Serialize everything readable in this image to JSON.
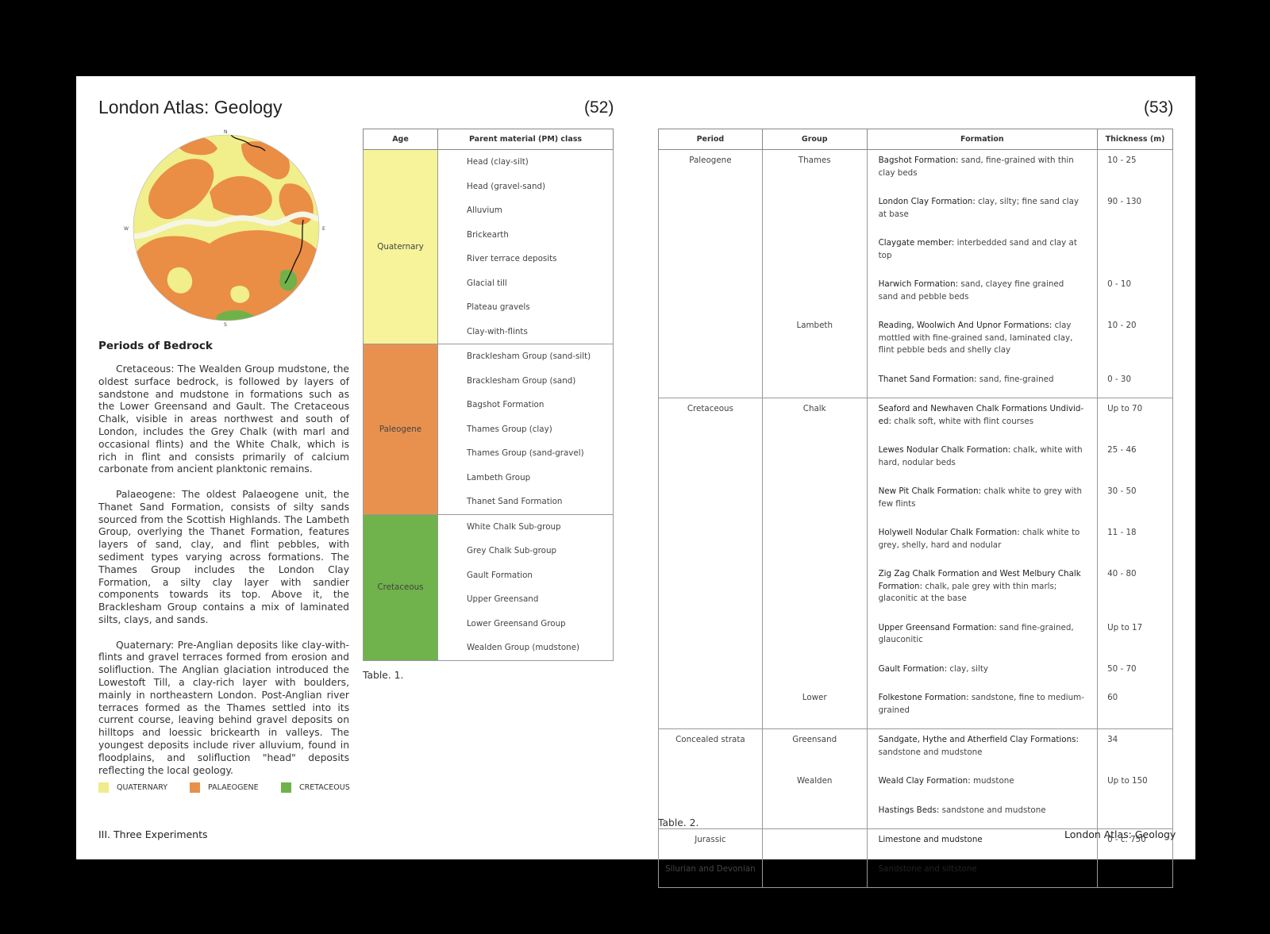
{
  "left_page": {
    "title": "London Atlas: Geology",
    "page_number": "(52)",
    "map": {
      "compass": {
        "n": "N",
        "s": "S",
        "w": "W",
        "e": "E"
      }
    },
    "section_heading": "Periods of Bedrock",
    "paragraphs": [
      {
        "lead": "Cretaceous:",
        "text": " The Wealden Group mudstone, the oldest surface bedrock, is followed by layers of sandstone and mudstone in formations such as the Lower Greensand and Gault. The Cretaceous Chalk, visible in areas northwest and south of London, includes the Grey Chalk (with marl and occasional flints) and the White Chalk, which is rich in flint and consists primarily of calcium carbonate from ancient planktonic remains."
      },
      {
        "lead": "Palaeogene:",
        "text": " The oldest Palaeogene unit, the Thanet Sand Formation, consists of silty sands sourced from the Scottish Highlands. The Lambeth Group, overlying the Thanet Formation, features layers of sand, clay, and flint pebbles, with sediment types varying across formations. The Thames Group includes the London Clay Formation, a silty clay layer with sandier components towards its top. Above it, the Bracklesham Group contains a mix of laminated silts, clays, and sands."
      },
      {
        "lead": "Quaternary:",
        "text": " Pre-Anglian deposits like clay-with-flints and gravel terraces formed from erosion and solifluction. The Anglian glaciation introduced the Lowestoft Till, a clay-rich layer with boulders, mainly in northeastern London. Post-Anglian river terraces formed as the Thames settled into its current course, leaving behind gravel deposits on hilltops and loessic brickearth in valleys. The youngest deposits include river alluvium, found in floodplains, and solifluction \"head\" deposits reflecting the local geology."
      }
    ],
    "legend": [
      {
        "label": "QUATERNARY",
        "color": "#f0ec8a"
      },
      {
        "label": "PALAEOGENE",
        "color": "#e8904a"
      },
      {
        "label": "CRETACEOUS",
        "color": "#6fb24a"
      }
    ],
    "footer": "III. Three Experiments"
  },
  "table1": {
    "headers": [
      "Age",
      "Parent material (PM) class"
    ],
    "groups": [
      {
        "age": "Quaternary",
        "color": "#f6f39a",
        "items": [
          "Head (clay-silt)",
          "Head (gravel-sand)",
          "Alluvium",
          "Brickearth",
          "River terrace deposits",
          "Glacial till",
          "Plateau gravels",
          "Clay-with-flints"
        ]
      },
      {
        "age": "Paleogene",
        "color": "#e8914f",
        "items": [
          "Bracklesham Group (sand-silt)",
          "Bracklesham Group (sand)",
          "Bagshot Formation",
          "Thames Group (clay)",
          "Thames Group (sand-gravel)",
          "Lambeth Group",
          "Thanet Sand Formation"
        ]
      },
      {
        "age": "Cretaceous",
        "color": "#70b24b",
        "items": [
          "White Chalk Sub-group",
          "Grey Chalk Sub-group",
          "Gault Formation",
          "Upper Greensand",
          "Lower Greensand Group",
          "Wealden Group (mudstone)"
        ]
      }
    ],
    "caption": "Table. 1."
  },
  "right_page": {
    "page_number": "(53)",
    "footer": "London Atlas: Geology"
  },
  "table2": {
    "headers": [
      "Period",
      "Group",
      "Formation",
      "Thickness (m)"
    ],
    "rows": [
      {
        "period": "Paleogene",
        "group": "Thames",
        "name": "Bagshot Formation:",
        "desc": " sand, fine-grained with thin clay beds",
        "thickness": "10 - 25",
        "grp": true
      },
      {
        "period": "",
        "group": "",
        "name": "London Clay Formation:",
        "desc": " clay, silty; fine sand clay at base",
        "thickness": "90 - 130"
      },
      {
        "period": "",
        "group": "",
        "name": "Claygate member:",
        "desc": " interbedded sand and clay at top",
        "thickness": ""
      },
      {
        "period": "",
        "group": "",
        "name": "Harwich Formation:",
        "desc": " sand, clayey fine grained sand and pebble beds",
        "thickness": "0 - 10"
      },
      {
        "period": "",
        "group": "Lambeth",
        "name": "Reading, Woolwich And Upnor Formations:",
        "desc": " clay mottled with fine-grained sand, laminated clay, flint pebble beds and shelly clay",
        "thickness": "10 - 20"
      },
      {
        "period": "",
        "group": "",
        "name": "Thanet Sand Formation:",
        "desc": " sand, fine-grained",
        "thickness": "0 - 30"
      },
      {
        "period": "Cretaceous",
        "group": "Chalk",
        "name": "Seaford and Newhaven Chalk Formations Undivid-ed:",
        "desc": " chalk soft, white with flint courses",
        "thickness": "Up to 70",
        "grp": true
      },
      {
        "period": "",
        "group": "",
        "name": "Lewes Nodular Chalk Formation:",
        "desc": " chalk, white with hard, nodular beds",
        "thickness": "25 - 46"
      },
      {
        "period": "",
        "group": "",
        "name": "New Pit Chalk Formation:",
        "desc": " chalk white to grey with few flints",
        "thickness": "30 - 50"
      },
      {
        "period": "",
        "group": "",
        "name": "Holywell Nodular Chalk Formation:",
        "desc": " chalk white to grey, shelly, hard and nodular",
        "thickness": "11 - 18"
      },
      {
        "period": "",
        "group": "",
        "name": "Zig Zag Chalk Formation and West Melbury Chalk Formation:",
        "desc": " chalk, pale grey with thin marls; glaconitic at the base",
        "thickness": "40 - 80"
      },
      {
        "period": "",
        "group": "",
        "name": "Upper Greensand Formation:",
        "desc": " sand fine-grained, glauconitic",
        "thickness": "Up to 17"
      },
      {
        "period": "",
        "group": "",
        "name": "Gault Formation:",
        "desc": " clay, silty",
        "thickness": "50 - 70"
      },
      {
        "period": "",
        "group": "Lower",
        "name": "Folkestone Formation:",
        "desc": " sandstone, fine to medium-grained",
        "thickness": "60"
      },
      {
        "period": "Concealed strata",
        "group": "Greensand",
        "name": "Sandgate, Hythe and Atherfield Clay Formations:",
        "desc": " sandstone and mudstone",
        "thickness": "34",
        "grp": true
      },
      {
        "period": "",
        "group": "Wealden",
        "name": "Weald Clay Formation:",
        "desc": " mudstone",
        "thickness": "Up to 150"
      },
      {
        "period": "",
        "group": "",
        "name": "Hastings Beds:",
        "desc": " sandstone and mudstone",
        "thickness": ""
      },
      {
        "period": "Jurassic",
        "group": "",
        "name": "Limestone and mudstone",
        "desc": "",
        "thickness": "0 - c. 750",
        "grp": true
      },
      {
        "period": "Silurian and Devonian",
        "group": "",
        "name": "Sandstone and siltstone",
        "desc": "",
        "thickness": "",
        "last": true
      }
    ],
    "caption": "Table. 2."
  }
}
